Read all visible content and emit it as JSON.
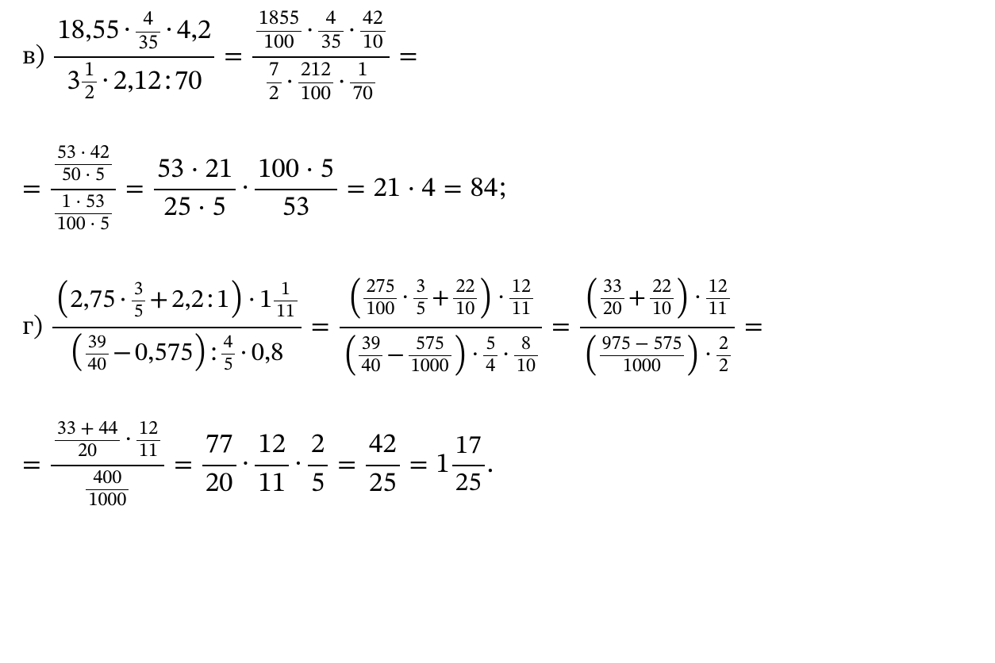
{
  "glyph": {
    "dot": "·",
    "minus": "−",
    "plus": "+",
    "colon": ":",
    "eq": "="
  },
  "row1": {
    "label": "в)",
    "lhs": {
      "num": {
        "a": "18,55",
        "b_num": "4",
        "b_den": "35",
        "c": "4,2"
      },
      "den": {
        "mix_whole": "3",
        "mix_num": "1",
        "mix_den": "2",
        "b": "2,12",
        "c": "70"
      }
    },
    "step1": {
      "num": {
        "a_num": "1855",
        "a_den": "100",
        "b_num": "4",
        "b_den": "35",
        "c_num": "42",
        "c_den": "10"
      },
      "den": {
        "a_num": "7",
        "a_den": "2",
        "b_num": "212",
        "b_den": "100",
        "c_num": "1",
        "c_den": "70"
      }
    }
  },
  "row2": {
    "lhs": {
      "num": {
        "top": "53 · 42",
        "bot": "50 · 5"
      },
      "den": {
        "top": "1 · 53",
        "bot": "100 · 5"
      }
    },
    "f1": {
      "num": "53 · 21",
      "den": "25 · 5"
    },
    "f2": {
      "num": "100 · 5",
      "den": "53"
    },
    "prod": "21 · 4",
    "result": "84",
    "tail": ";"
  },
  "row3": {
    "label": "г)",
    "lhs": {
      "num": {
        "a": "2,75",
        "b_num": "3",
        "b_den": "5",
        "c": "2,2",
        "d": "1",
        "mix_whole": "1",
        "mix_num": "1",
        "mix_den": "11"
      },
      "den": {
        "a_num": "39",
        "a_den": "40",
        "b": "0,575",
        "c_num": "4",
        "c_den": "5",
        "d": "0,8"
      }
    },
    "step1": {
      "num": {
        "a_num": "275",
        "a_den": "100",
        "b_num": "3",
        "b_den": "5",
        "c_num": "22",
        "c_den": "10",
        "d_num": "12",
        "d_den": "11"
      },
      "den": {
        "a_num": "39",
        "a_den": "40",
        "b_num": "575",
        "b_den": "1000",
        "c_num": "5",
        "c_den": "4",
        "d_num": "8",
        "d_den": "10"
      }
    },
    "step2": {
      "num": {
        "a_num": "33",
        "a_den": "20",
        "b_num": "22",
        "b_den": "10",
        "c_num": "12",
        "c_den": "11"
      },
      "den": {
        "a_num": "975 − 575",
        "a_den": "1000",
        "b_num": "2",
        "b_den": "2"
      }
    }
  },
  "row4": {
    "lhs": {
      "num": {
        "a_num": "33 + 44",
        "a_den": "20",
        "b_num": "12",
        "b_den": "11"
      },
      "den": {
        "num": "400",
        "den": "1000"
      }
    },
    "f1": {
      "num": "77",
      "den": "20"
    },
    "f2": {
      "num": "12",
      "den": "11"
    },
    "f3": {
      "num": "2",
      "den": "5"
    },
    "f4": {
      "num": "42",
      "den": "25"
    },
    "mix": {
      "whole": "1",
      "num": "17",
      "den": "25"
    },
    "tail": "."
  }
}
